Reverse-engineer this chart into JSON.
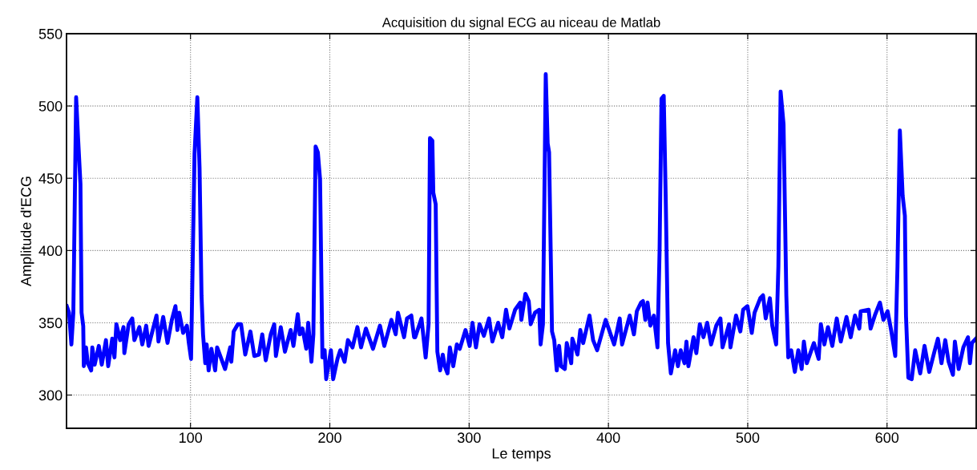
{
  "chart_data": {
    "type": "line",
    "title": "Acquisition du signal ECG au niceau de Matlab",
    "xlabel": "Le temps",
    "ylabel": "Amplitude d'ECG",
    "x": [
      11.2,
      12.8,
      14.5,
      15.9,
      17.9,
      19.3,
      21,
      21.8,
      23,
      23.4,
      25,
      26.3,
      28.7,
      29.5,
      31.2,
      34.2,
      36.3,
      39.3,
      40.9,
      43.8,
      45.4,
      46.8,
      49.5,
      51.9,
      52.5,
      55.6,
      58.2,
      59.7,
      63.3,
      65.4,
      68.2,
      69.9,
      75.6,
      77,
      80.4,
      83.5,
      86.6,
      89.2,
      90.6,
      91.9,
      94.7,
      97.4,
      98.8,
      100.4,
      102.9,
      104.9,
      106.5,
      107.9,
      109,
      110.6,
      111.6,
      113,
      115,
      117.7,
      119.1,
      124.8,
      128.5,
      129.3,
      131,
      134,
      136.3,
      139.3,
      143,
      145.8,
      149.1,
      151.5,
      154,
      157.6,
      160.1,
      161.3,
      164.8,
      167.8,
      171.9,
      173.9,
      177,
      178.4,
      180.4,
      183.1,
      184.5,
      186.8,
      188.2,
      189.8,
      191.4,
      193,
      194.7,
      196.3,
      197.4,
      200.8,
      202.4,
      205.5,
      207.5,
      210.6,
      213,
      216.3,
      219.8,
      222.4,
      225.9,
      231,
      236,
      239.1,
      244.2,
      247.3,
      248.9,
      253.3,
      255.4,
      258.5,
      260.5,
      261.3,
      265.8,
      268.8,
      270.9,
      271.9,
      273.6,
      274.3,
      276,
      277.2,
      279.2,
      281.1,
      282.5,
      284.5,
      286.2,
      288.6,
      291.2,
      293.3,
      297.4,
      300.4,
      302.4,
      304.9,
      307.5,
      310.6,
      314.3,
      316.7,
      320.8,
      323.8,
      326.5,
      328.9,
      333,
      336.7,
      337.5,
      340.4,
      342.8,
      344.2,
      347.3,
      350.3,
      351.3,
      353,
      355,
      356.4,
      357.4,
      359.5,
      361.1,
      362.9,
      364.6,
      366,
      368.7,
      370.1,
      373.3,
      374.1,
      377.8,
      379.8,
      381.9,
      386.4,
      389,
      391.9,
      398,
      404.1,
      408.1,
      409.8,
      415.3,
      418.3,
      420.4,
      423.4,
      424.8,
      426.5,
      428.1,
      430.1,
      432.6,
      435.2,
      436.7,
      438.1,
      439.7,
      441.1,
      442.8,
      444.8,
      447.9,
      449.9,
      451.9,
      454.6,
      456,
      457.4,
      461.1,
      463.1,
      465.6,
      468.2,
      470.9,
      473.7,
      477.4,
      480.4,
      481.9,
      486.6,
      487.6,
      491.6,
      494.7,
      496.7,
      499.8,
      502.9,
      504.9,
      509,
      511,
      512.9,
      515.9,
      517.6,
      520.4,
      522,
      523.6,
      525.7,
      527.7,
      529.1,
      531.2,
      533.8,
      536.3,
      538.7,
      540.3,
      542.4,
      547.5,
      550.9,
      552.5,
      555,
      557.6,
      560.7,
      563.9,
      566.8,
      570.9,
      573.9,
      577,
      580.1,
      581.1,
      586.8,
      588.2,
      591.2,
      594.9,
      597.4,
      600.4,
      603.1,
      605.9,
      607.5,
      609.2,
      611.2,
      612.8,
      613.6,
      615.3,
      617.7,
      620.2,
      623.8,
      626.9,
      630.3,
      634,
      636.5,
      639.1,
      641.8,
      644.2,
      647.3,
      648.7,
      651.4,
      654.8,
      658.1,
      659.5,
      660.9,
      663.8
    ],
    "series": [
      {
        "color": "#0000ff",
        "values": [
          361.5,
          357,
          335,
          357,
          506,
          477.7,
          446,
          357,
          347.7,
          320,
          333,
          322,
          317,
          333,
          321,
          334,
          321,
          338,
          320,
          339,
          326,
          349,
          338,
          347,
          329,
          349,
          353,
          338,
          347,
          335,
          348,
          334,
          355,
          337,
          354,
          336,
          352,
          361.5,
          345,
          357,
          343,
          348,
          336,
          325,
          467,
          506,
          457,
          369,
          342,
          322,
          335,
          317,
          332,
          317,
          333,
          318,
          333,
          323,
          344,
          349,
          349,
          328,
          344,
          327,
          328,
          342,
          324,
          342,
          349,
          327,
          347,
          330,
          345,
          334,
          356,
          342,
          346,
          332,
          350,
          323,
          342,
          472,
          468,
          449,
          326,
          331,
          311,
          331,
          311,
          325,
          331,
          323,
          338,
          333,
          347,
          333,
          346,
          332,
          348,
          334,
          352,
          342,
          357,
          340,
          353,
          355,
          340,
          340,
          353,
          326,
          349,
          477.7,
          476,
          440,
          432,
          330,
          317,
          328,
          320,
          315,
          333,
          320,
          335,
          332,
          345,
          334,
          350,
          333,
          349,
          341,
          353,
          337,
          350,
          340,
          359,
          346,
          359,
          364,
          352,
          370,
          365,
          349,
          357,
          359,
          335,
          349,
          522,
          474,
          468,
          344,
          338,
          317,
          334,
          320,
          318,
          336,
          322,
          339,
          328,
          345,
          336,
          355,
          338,
          331,
          352,
          335,
          353,
          335,
          355,
          342,
          358,
          364,
          365,
          352,
          364,
          348,
          355,
          333,
          399,
          505,
          507,
          438,
          336,
          315,
          331,
          320,
          331,
          322,
          337,
          320,
          340,
          329,
          349,
          340,
          350,
          335,
          348,
          353,
          333,
          349,
          333,
          355,
          344,
          359,
          361.5,
          343,
          357,
          367,
          369,
          353,
          367,
          348,
          335,
          389,
          510,
          487.5,
          369,
          326,
          331,
          316,
          331,
          318,
          337,
          322,
          336,
          325,
          349,
          335,
          347,
          334,
          353,
          337,
          354,
          340,
          355,
          346,
          358,
          359,
          346,
          355,
          364,
          352,
          358,
          344,
          327,
          389,
          483,
          438,
          424,
          355,
          312,
          311,
          331,
          315,
          334,
          316,
          330,
          339,
          322,
          338,
          323,
          314,
          337,
          318,
          333,
          340,
          322,
          336,
          339
        ]
      }
    ],
    "xlim": [
      11,
      664
    ],
    "xticks": [
      100,
      200,
      300,
      400,
      500,
      600
    ],
    "ylim": [
      277,
      550
    ],
    "yticks": [
      300,
      350,
      400,
      450,
      500,
      550
    ],
    "grid": true,
    "line_style": "solid"
  }
}
